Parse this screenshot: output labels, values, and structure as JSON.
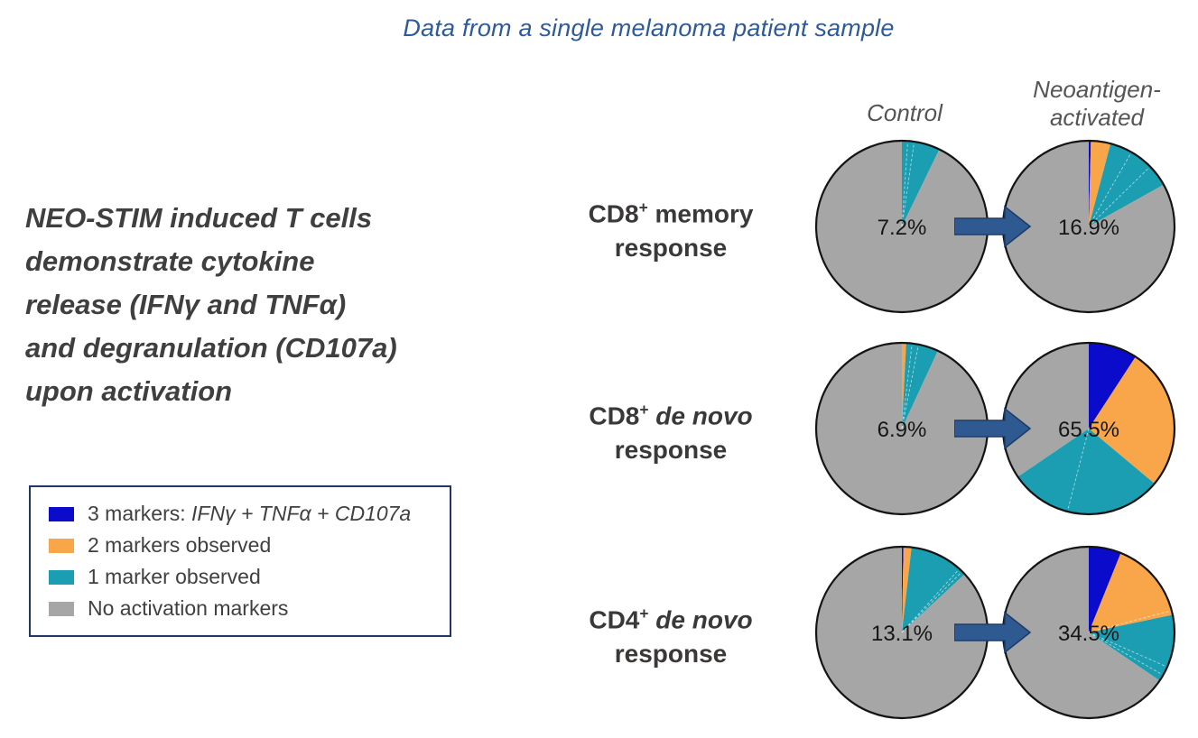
{
  "title": "Data from a single melanoma patient sample",
  "headline_lines": [
    "NEO-STIM induced T cells",
    "demonstrate cytokine",
    "release (IFNγ and TNFα)",
    "and degranulation (CD107a)",
    "upon activation"
  ],
  "column_headers": {
    "control": "Control",
    "treated": "Neoantigen-activated"
  },
  "legend": {
    "items": [
      {
        "color_key": "blue",
        "prefix": "3 markers: ",
        "italic": "IFNγ + TNFα + CD107a"
      },
      {
        "color_key": "orange",
        "prefix": "2 markers observed",
        "italic": ""
      },
      {
        "color_key": "teal",
        "prefix": "1 marker observed",
        "italic": ""
      },
      {
        "color_key": "gray",
        "prefix": "No activation markers",
        "italic": ""
      }
    ]
  },
  "colors": {
    "blue": "#0B0BCB",
    "orange": "#F9A64B",
    "teal": "#1B9EB1",
    "gray": "#A6A6A6",
    "arrow": "#2E5A91",
    "arrow_border": "#1E3C68",
    "title_blue": "#2E5B97",
    "legend_border": "#1F3864",
    "pie_outline": "#141414",
    "text_dark": "#3F3F3F"
  },
  "chart_data": {
    "type": "pie",
    "unit": "percent of T cells",
    "conditions": [
      "Control",
      "Neoantigen-activated"
    ],
    "slice_order": [
      "blue",
      "orange",
      "teal",
      "gray"
    ],
    "slice_meaning": {
      "blue": "3 markers: IFNγ + TNFα + CD107a",
      "orange": "2 markers observed",
      "teal": "1 marker observed",
      "gray": "No activation markers"
    },
    "rows": [
      {
        "label": "CD8+ memory response",
        "label_parts": {
          "cell": "CD8",
          "sup": "+",
          "qualifier": "memory",
          "italic_qualifier": false,
          "line2": "response"
        },
        "pies": [
          {
            "condition": "Control",
            "total_activated_label": "7.2%",
            "slices": {
              "blue": 0,
              "orange": 0,
              "teal": 7.2,
              "gray": 92.8
            },
            "dividers": [
              1.1,
              2.3
            ]
          },
          {
            "condition": "Neoantigen-activated",
            "total_activated_label": "16.9%",
            "slices": {
              "blue": 0.4,
              "orange": 3.7,
              "teal": 12.8,
              "gray": 83.1
            },
            "dividers": [
              8.3,
              12.7
            ]
          }
        ]
      },
      {
        "label": "CD8+ de novo response",
        "label_parts": {
          "cell": "CD8",
          "sup": "+",
          "qualifier": "de novo",
          "italic_qualifier": true,
          "line2": "response"
        },
        "pies": [
          {
            "condition": "Control",
            "total_activated_label": "6.9%",
            "slices": {
              "blue": 0,
              "orange": 0.8,
              "teal": 6.1,
              "gray": 93.1
            },
            "dividers": [
              1.9,
              3.1
            ]
          },
          {
            "condition": "Neoantigen-activated",
            "total_activated_label": "65.5%",
            "slices": {
              "blue": 9.2,
              "orange": 26.9,
              "teal": 29.4,
              "gray": 34.5
            },
            "dividers": [
              54.0
            ]
          }
        ]
      },
      {
        "label": "CD4+ de novo response",
        "label_parts": {
          "cell": "CD4",
          "sup": "+",
          "qualifier": "de novo",
          "italic_qualifier": true,
          "line2": "response"
        },
        "pies": [
          {
            "condition": "Control",
            "total_activated_label": "13.1%",
            "slices": {
              "blue": 0.3,
              "orange": 1.5,
              "teal": 11.3,
              "gray": 86.9
            },
            "dividers": [
              11.7,
              12.4
            ]
          },
          {
            "condition": "Neoantigen-activated",
            "total_activated_label": "34.5%",
            "slices": {
              "blue": 6.1,
              "orange": 15.6,
              "teal": 12.8,
              "gray": 65.5
            },
            "dividers": [
              20.9,
              31.6,
              33.3
            ]
          }
        ]
      }
    ]
  }
}
